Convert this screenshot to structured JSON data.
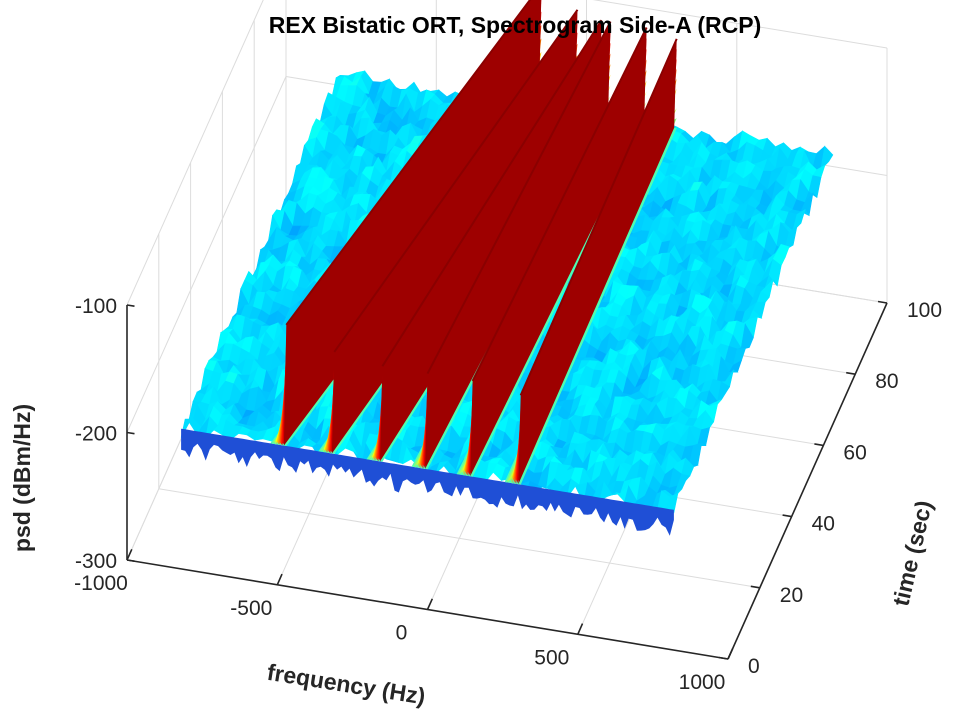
{
  "chart_data": {
    "type": "surface",
    "title": "REX Bistatic ORT, Spectrogram Side-A (RCP)",
    "xlabel": "frequency (Hz)",
    "ylabel": "time (sec)",
    "zlabel": "psd (dBm/Hz)",
    "xlim": [
      -1000,
      1000
    ],
    "ylim": [
      0,
      100
    ],
    "zlim": [
      -300,
      -100
    ],
    "x_ticks": [
      -1000,
      -500,
      0,
      500,
      1000
    ],
    "y_ticks": [
      0,
      20,
      40,
      60,
      80,
      100
    ],
    "z_ticks": [
      -100,
      -200,
      -300
    ],
    "grid": true,
    "colormap": "jet",
    "surface_extent": {
      "freq": [
        -820,
        820
      ],
      "time": [
        0,
        100
      ]
    },
    "noise_floor_dbm_hz": -190,
    "tones": [
      {
        "start_freq": -470,
        "end_freq": -150,
        "peak_dbm_hz": -95
      },
      {
        "start_freq": -310,
        "end_freq": -30,
        "peak_dbm_hz": -110
      },
      {
        "start_freq": -150,
        "end_freq": 50,
        "peak_dbm_hz": -115
      },
      {
        "start_freq": 0,
        "end_freq": 80,
        "peak_dbm_hz": -115
      },
      {
        "start_freq": 150,
        "end_freq": 200,
        "peak_dbm_hz": -115
      },
      {
        "start_freq": 310,
        "end_freq": 300,
        "peak_dbm_hz": -120
      }
    ]
  }
}
